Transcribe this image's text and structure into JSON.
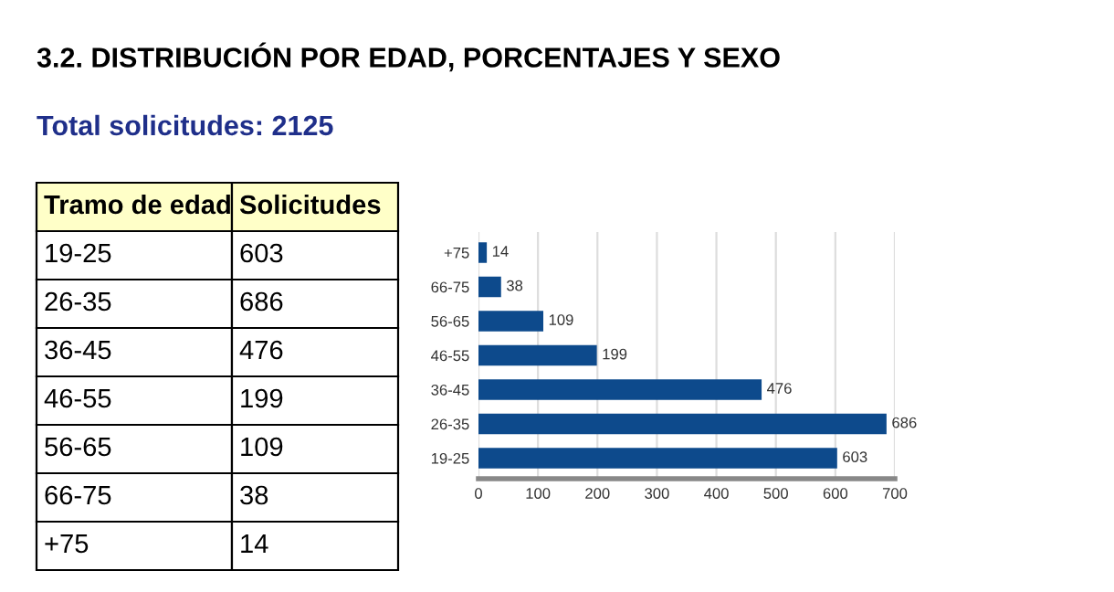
{
  "chart_data": {
    "type": "bar",
    "orientation": "horizontal",
    "title": "3.2. DISTRIBUCIÓN POR EDAD, PORCENTAJES Y SEXO",
    "subtitle": "Total solicitudes: 2125",
    "categories": [
      "+75",
      "66-75",
      "56-65",
      "46-55",
      "36-45",
      "26-35",
      "19-25"
    ],
    "values": [
      14,
      38,
      109,
      199,
      476,
      686,
      603
    ],
    "color": "#0d4a8c",
    "xlim": [
      0,
      700
    ],
    "xticks": [
      0,
      100,
      200,
      300,
      400,
      500,
      600,
      700
    ],
    "grid": "x",
    "value_labels": [
      "14",
      "38",
      "109",
      "199",
      "476",
      "686",
      "603"
    ],
    "annotations": [
      "Tramo de edad",
      "Solicitudes"
    ]
  }
}
